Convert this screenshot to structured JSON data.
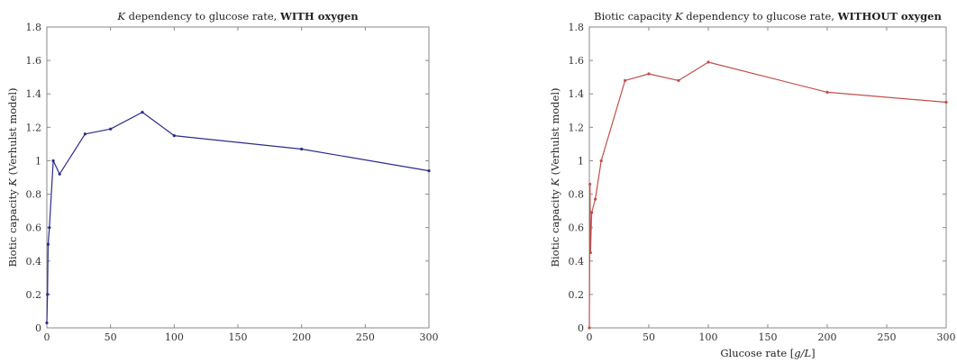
{
  "chart_data": [
    {
      "type": "line",
      "title": {
        "prefix": "",
        "italic": "K",
        "middle": " dependency to glucose rate, ",
        "bold": "WITH oxygen"
      },
      "ylabel": {
        "before": "Biotic capacity ",
        "italic": "K",
        "after": " (Verhulst model)"
      },
      "xlabel": {
        "before": "",
        "italic": "",
        "after": ""
      },
      "xlim": [
        0,
        300
      ],
      "ylim": [
        0,
        1.8
      ],
      "xticks": [
        0,
        50,
        100,
        150,
        200,
        250,
        300
      ],
      "yticks": [
        0,
        0.2,
        0.4,
        0.6,
        0.8,
        1,
        1.2,
        1.4,
        1.6,
        1.8
      ],
      "grid": false,
      "color": "#2b2b8c",
      "series": [
        {
          "x": [
            0,
            0.5,
            1,
            2,
            5,
            10,
            30,
            50,
            75,
            100,
            200,
            300
          ],
          "y": [
            0.03,
            0.2,
            0.5,
            0.6,
            1.0,
            0.92,
            1.16,
            1.19,
            1.29,
            1.15,
            1.07,
            0.94
          ]
        }
      ]
    },
    {
      "type": "line",
      "title": {
        "prefix": "Biotic capacity ",
        "italic": "K",
        "middle": " dependency to glucose rate, ",
        "bold": "WITHOUT oxygen"
      },
      "ylabel": {
        "before": "Biotic capacity ",
        "italic": "K",
        "after": " (Verhulst model)"
      },
      "xlabel": {
        "before": "Glucose rate [",
        "italic": "g/L",
        "after": "]"
      },
      "xlim": [
        0,
        300
      ],
      "ylim": [
        0,
        1.8
      ],
      "xticks": [
        0,
        50,
        100,
        150,
        200,
        250,
        300
      ],
      "yticks": [
        0,
        0.2,
        0.4,
        0.6,
        0.8,
        1,
        1.2,
        1.4,
        1.6,
        1.8
      ],
      "grid": false,
      "color": "#c0504d",
      "series": [
        {
          "x": [
            0,
            0.5,
            1,
            2,
            5,
            10,
            30,
            50,
            75,
            100,
            200,
            300
          ],
          "y": [
            0.0,
            0.86,
            0.45,
            0.69,
            0.77,
            1.0,
            1.48,
            1.52,
            1.48,
            1.59,
            1.41,
            1.35
          ]
        }
      ]
    }
  ]
}
